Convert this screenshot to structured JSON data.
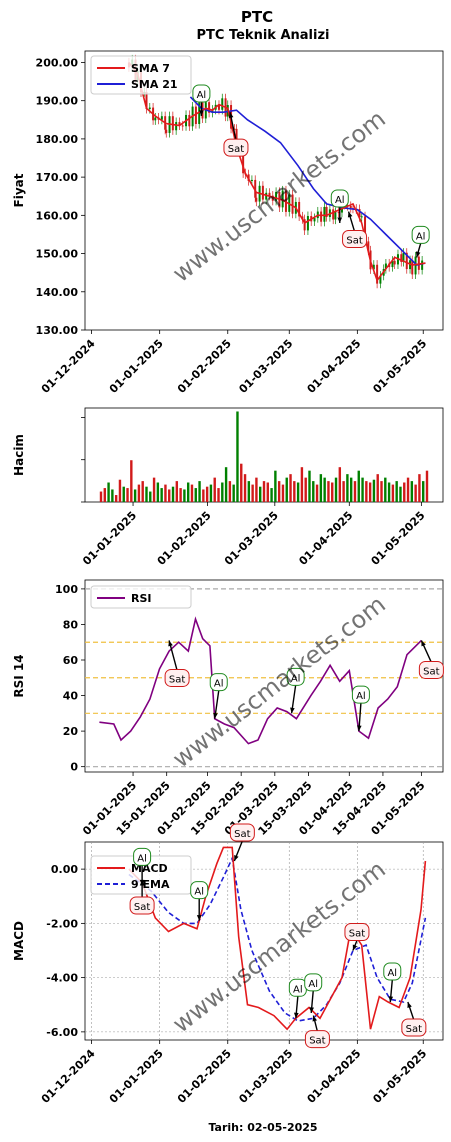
{
  "header": {
    "title": "PTC",
    "subtitle": "PTC Teknik Analizi"
  },
  "footer": {
    "date_label": "Tarih: 02-05-2025"
  },
  "watermark": "www.uscmarkets.com",
  "colors": {
    "sma7": "#e31a1c",
    "sma21": "#1f1fd6",
    "rsi": "#800080",
    "macd": "#e31a1c",
    "ema9": "#1f1fd6",
    "up": "#008000",
    "down": "#d11a1a",
    "al_border": "#1f8a1f",
    "sat_border": "#d11a1a",
    "bg_al": "#ffffff",
    "bg_sat": "#fff0f0"
  },
  "chart_data": [
    {
      "id": "price",
      "type": "line",
      "ylabel": "Fiyat",
      "ylim": [
        130,
        203
      ],
      "yticks": [
        "130.00",
        "140.00",
        "150.00",
        "160.00",
        "170.00",
        "180.00",
        "190.00",
        "200.00"
      ],
      "xticks": [
        "01-12-2024",
        "01-01-2025",
        "01-02-2025",
        "01-03-2025",
        "01-04-2025",
        "01-05-2025"
      ],
      "legend": [
        "SMA 7",
        "SMA 21"
      ],
      "series": [
        {
          "name": "SMA 7",
          "x": [
            "2024-12-18",
            "2024-12-22",
            "2024-12-26",
            "2024-12-30",
            "2025-01-04",
            "2025-01-10",
            "2025-01-16",
            "2025-01-22",
            "2025-01-25",
            "2025-01-28",
            "2025-02-01",
            "2025-02-05",
            "2025-02-09",
            "2025-02-14",
            "2025-02-20",
            "2025-02-26",
            "2025-03-04",
            "2025-03-08",
            "2025-03-14",
            "2025-03-18",
            "2025-03-22",
            "2025-03-26",
            "2025-03-30",
            "2025-04-03",
            "2025-04-07",
            "2025-04-10",
            "2025-04-14",
            "2025-04-18",
            "2025-04-22",
            "2025-04-26",
            "2025-05-02"
          ],
          "y": [
            200,
            197,
            188,
            186,
            184,
            183.5,
            186,
            188,
            187.5,
            189,
            188,
            178,
            171,
            166,
            165,
            164,
            162,
            158,
            160,
            160,
            161,
            162,
            163,
            158,
            148,
            143,
            146,
            149,
            148,
            147,
            147.5
          ]
        },
        {
          "name": "SMA 21",
          "x": [
            "2025-01-15",
            "2025-01-20",
            "2025-01-25",
            "2025-01-30",
            "2025-02-05",
            "2025-02-10",
            "2025-02-18",
            "2025-02-25",
            "2025-03-05",
            "2025-03-12",
            "2025-03-18",
            "2025-03-25",
            "2025-04-01",
            "2025-04-07",
            "2025-04-14",
            "2025-04-21",
            "2025-04-28",
            "2025-05-02"
          ],
          "y": [
            191,
            188,
            187,
            187,
            187.5,
            185,
            182,
            179,
            173,
            167,
            163,
            162,
            161.5,
            159,
            155,
            151,
            147,
            147.5
          ]
        }
      ],
      "annotations": [
        {
          "label": "Al",
          "date": "2025-01-20",
          "price": 186
        },
        {
          "label": "Sat",
          "date": "2025-02-02",
          "price": 187
        },
        {
          "label": "Al",
          "date": "2025-03-24",
          "price": 158
        },
        {
          "label": "Sat",
          "date": "2025-03-28",
          "price": 161
        },
        {
          "label": "Al",
          "date": "2025-04-28",
          "price": 149
        }
      ]
    },
    {
      "id": "volume",
      "type": "bar",
      "ylabel": "Hacim",
      "xticks": [
        "01-01-2025",
        "01-02-2025",
        "01-03-2025",
        "01-04-2025",
        "01-05-2025"
      ],
      "values": [
        0.15,
        0.2,
        0.28,
        0.18,
        0.1,
        0.32,
        0.22,
        0.2,
        0.6,
        0.18,
        0.25,
        0.3,
        0.22,
        0.15,
        0.35,
        0.28,
        0.2,
        0.25,
        0.18,
        0.22,
        0.3,
        0.2,
        0.18,
        0.28,
        0.25,
        0.2,
        0.3,
        0.18,
        0.22,
        0.25,
        0.35,
        0.2,
        0.28,
        0.5,
        0.3,
        0.25,
        1.3,
        0.55,
        0.4,
        0.3,
        0.25,
        0.35,
        0.22,
        0.3,
        0.28,
        0.2,
        0.45,
        0.3,
        0.25,
        0.35,
        0.4,
        0.3,
        0.28,
        0.5,
        0.35,
        0.45,
        0.3,
        0.25,
        0.4,
        0.35,
        0.3,
        0.28,
        0.35,
        0.5,
        0.3,
        0.4,
        0.35,
        0.3,
        0.45,
        0.35,
        0.3,
        0.28,
        0.32,
        0.4,
        0.3,
        0.35,
        0.28,
        0.25,
        0.3,
        0.22,
        0.28,
        0.35,
        0.3,
        0.25,
        0.4,
        0.3,
        0.45
      ]
    },
    {
      "id": "rsi",
      "type": "line",
      "ylabel": "RSI 14",
      "ylim": [
        -3,
        105
      ],
      "yticks": [
        "0",
        "20",
        "40",
        "60",
        "80",
        "100"
      ],
      "xticks": [
        "01-01-2025",
        "15-01-2025",
        "01-02-2025",
        "15-02-2025",
        "01-03-2025",
        "15-03-2025",
        "01-04-2025",
        "15-04-2025",
        "01-05-2025"
      ],
      "legend": [
        "RSI"
      ],
      "series": [
        {
          "name": "RSI",
          "x": [
            "2024-12-18",
            "2024-12-24",
            "2024-12-27",
            "2024-12-31",
            "2025-01-04",
            "2025-01-08",
            "2025-01-12",
            "2025-01-16",
            "2025-01-20",
            "2025-01-24",
            "2025-01-27",
            "2025-01-30",
            "2025-02-02",
            "2025-02-04",
            "2025-02-08",
            "2025-02-12",
            "2025-02-18",
            "2025-02-22",
            "2025-02-26",
            "2025-03-02",
            "2025-03-06",
            "2025-03-10",
            "2025-03-16",
            "2025-03-20",
            "2025-03-24",
            "2025-03-28",
            "2025-04-01",
            "2025-04-05",
            "2025-04-09",
            "2025-04-13",
            "2025-04-17",
            "2025-04-21",
            "2025-04-25",
            "2025-05-01"
          ],
          "y": [
            25,
            24,
            15,
            20,
            28,
            38,
            55,
            65,
            70,
            65,
            83,
            72,
            68,
            27,
            24,
            22,
            13,
            15,
            27,
            33,
            31,
            27,
            40,
            48,
            57,
            48,
            54,
            20,
            16,
            33,
            38,
            45,
            63,
            71
          ]
        }
      ],
      "reference_lines": [
        0,
        30,
        50,
        70,
        100
      ],
      "annotations": [
        {
          "label": "Sat",
          "date": "2025-01-16",
          "value": 71
        },
        {
          "label": "Al",
          "date": "2025-02-04",
          "value": 27
        },
        {
          "label": "Al",
          "date": "2025-03-08",
          "value": 30
        },
        {
          "label": "Al",
          "date": "2025-04-05",
          "value": 20
        },
        {
          "label": "Sat",
          "date": "2025-05-01",
          "value": 71
        }
      ]
    },
    {
      "id": "macd",
      "type": "line",
      "ylabel": "MACD",
      "ylim": [
        -6.3,
        1.0
      ],
      "yticks": [
        "0.00",
        "-2.00",
        "-4.00",
        "-6.00"
      ],
      "xticks": [
        "01-12-2024",
        "01-01-2025",
        "01-02-2025",
        "01-03-2025",
        "01-04-2025",
        "01-05-2025"
      ],
      "legend": [
        "MACD",
        "9 EMA"
      ],
      "series": [
        {
          "name": "MACD",
          "x": [
            "2024-12-18",
            "2024-12-24",
            "2024-12-30",
            "2025-01-05",
            "2025-01-12",
            "2025-01-18",
            "2025-01-22",
            "2025-01-27",
            "2025-01-30",
            "2025-02-03",
            "2025-02-06",
            "2025-02-10",
            "2025-02-15",
            "2025-02-22",
            "2025-02-28",
            "2025-03-04",
            "2025-03-10",
            "2025-03-15",
            "2025-03-21",
            "2025-03-25",
            "2025-03-29",
            "2025-04-03",
            "2025-04-07",
            "2025-04-11",
            "2025-04-15",
            "2025-04-20",
            "2025-04-25",
            "2025-04-30",
            "2025-05-02"
          ],
          "y": [
            0,
            -0.5,
            -1.8,
            -2.3,
            -2.0,
            -2.2,
            -1.0,
            0.2,
            0.8,
            0.8,
            -2.5,
            -5.0,
            -5.1,
            -5.4,
            -5.9,
            -5.5,
            -5.1,
            -5.5,
            -4.6,
            -4.0,
            -2.2,
            -2.8,
            -5.9,
            -4.7,
            -4.9,
            -5.1,
            -4.0,
            -1.5,
            0.3
          ]
        },
        {
          "name": "9 EMA",
          "x": [
            "2024-12-18",
            "2024-12-28",
            "2025-01-05",
            "2025-01-12",
            "2025-01-18",
            "2025-01-24",
            "2025-01-30",
            "2025-02-03",
            "2025-02-07",
            "2025-02-12",
            "2025-02-20",
            "2025-02-27",
            "2025-03-05",
            "2025-03-12",
            "2025-03-18",
            "2025-03-24",
            "2025-03-30",
            "2025-04-05",
            "2025-04-10",
            "2025-04-16",
            "2025-04-22",
            "2025-04-26",
            "2025-05-02"
          ],
          "y": [
            -0.2,
            -0.8,
            -1.6,
            -2.0,
            -2.0,
            -1.3,
            -0.3,
            0.4,
            -1.5,
            -3.0,
            -4.5,
            -5.3,
            -5.6,
            -5.5,
            -5.0,
            -4.2,
            -3.0,
            -2.8,
            -4.0,
            -4.8,
            -4.9,
            -4.2,
            -1.8
          ]
        }
      ],
      "annotations": [
        {
          "label": "Al",
          "date": "2024-12-24",
          "value": -0.6
        },
        {
          "label": "Sat",
          "date": "2024-12-24",
          "value": -0.4
        },
        {
          "label": "Al",
          "date": "2025-01-19",
          "value": -1.9
        },
        {
          "label": "Sat",
          "date": "2025-02-04",
          "value": 0.3
        },
        {
          "label": "Al",
          "date": "2025-03-04",
          "value": -5.5
        },
        {
          "label": "Al",
          "date": "2025-03-11",
          "value": -5.3
        },
        {
          "label": "Sat",
          "date": "2025-03-12",
          "value": -5.4
        },
        {
          "label": "Sat",
          "date": "2025-03-30",
          "value": -3.0
        },
        {
          "label": "Al",
          "date": "2025-04-16",
          "value": -4.9
        },
        {
          "label": "Sat",
          "date": "2025-04-24",
          "value": -4.9
        }
      ]
    }
  ]
}
